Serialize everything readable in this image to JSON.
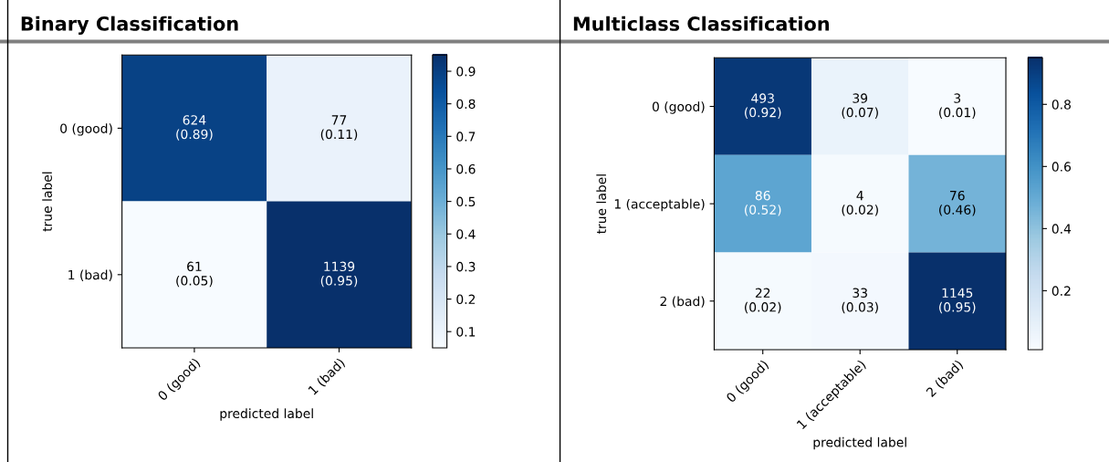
{
  "chart_data": [
    {
      "type": "heatmap",
      "title": "Binary Classification",
      "xlabel": "predicted label",
      "ylabel": "true label",
      "categories": [
        "0 (good)",
        "1 (bad)"
      ],
      "y_categories": [
        "0 (good)",
        "1 (bad)"
      ],
      "cells": [
        [
          0.89,
          0.11
        ],
        [
          0.05,
          0.95
        ]
      ],
      "cell_labels": [
        [
          "624\n(0.89)",
          "77\n(0.11)"
        ],
        [
          "61\n(0.05)",
          "1139\n(0.95)"
        ]
      ],
      "clim": [
        0.05,
        0.95
      ],
      "cticks": [
        0.1,
        0.2,
        0.3,
        0.4,
        0.5,
        0.6,
        0.7,
        0.8,
        0.9
      ]
    },
    {
      "type": "heatmap",
      "title": "Multiclass Classification",
      "xlabel": "predicted label",
      "ylabel": "true label",
      "categories": [
        "0 (good)",
        "1 (acceptable)",
        "2 (bad)"
      ],
      "y_categories": [
        "0 (good)",
        "1 (acceptable)",
        "2 (bad)"
      ],
      "cells": [
        [
          0.92,
          0.07,
          0.01
        ],
        [
          0.52,
          0.02,
          0.46
        ],
        [
          0.02,
          0.03,
          0.95
        ]
      ],
      "cell_labels": [
        [
          "493\n(0.92)",
          "39\n(0.07)",
          "3\n(0.01)"
        ],
        [
          "86\n(0.52)",
          "4\n(0.02)",
          "76\n(0.46)"
        ],
        [
          "22\n(0.02)",
          "33\n(0.03)",
          "1145\n(0.95)"
        ]
      ],
      "clim": [
        0.01,
        0.95
      ],
      "cticks": [
        0.2,
        0.4,
        0.6,
        0.8
      ]
    }
  ]
}
